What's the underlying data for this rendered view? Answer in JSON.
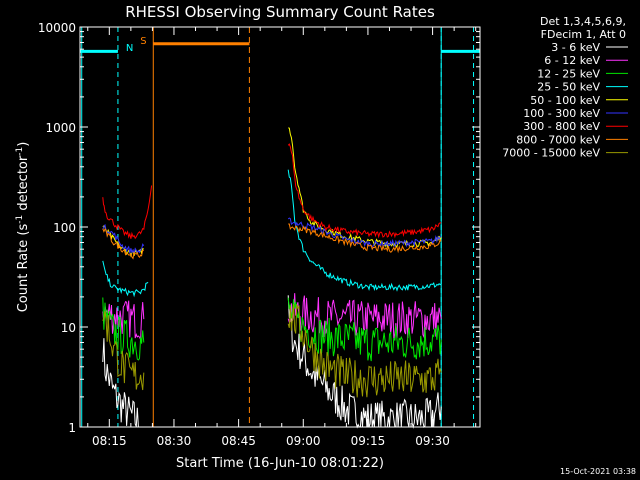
{
  "chart_data": {
    "type": "line",
    "title": "RHESSI Observing Summary Count Rates",
    "xlabel": "Start Time (16-Jun-10 08:01:22)",
    "ylabel_main": "Count Rate (s",
    "ylabel_sup1": "-1",
    "ylabel_mid": " detector",
    "ylabel_sup2": "-1",
    "ylabel_end": ")",
    "y_scale": "log",
    "ylim": [
      1,
      10000
    ],
    "xlim_minutes": [
      8.2,
      101.0
    ],
    "x_ticks": [
      {
        "label": "08:15",
        "minute": 15
      },
      {
        "label": "08:30",
        "minute": 30
      },
      {
        "label": "08:45",
        "minute": 45
      },
      {
        "label": "09:00",
        "minute": 60
      },
      {
        "label": "09:15",
        "minute": 75
      },
      {
        "label": "09:30",
        "minute": 90
      }
    ],
    "y_ticks": [
      {
        "label": "1",
        "value": 1
      },
      {
        "label": "10",
        "value": 10
      },
      {
        "label": "100",
        "value": 100
      },
      {
        "label": "1000",
        "value": 1000
      },
      {
        "label": "10000",
        "value": 10000
      }
    ],
    "legend_header": [
      "Det 1,3,4,5,6,9,",
      "FDecim 1, Att 0"
    ],
    "legend_placement": "right",
    "series": [
      {
        "name": "3 - 6 keV",
        "color": "#ffffff",
        "segments": [
          {
            "x": [
              13.5,
              14,
              15,
              16,
              18,
              20,
              21,
              22,
              23
            ],
            "y": [
              7,
              4,
              3,
              2.2,
              1.6,
              1.3,
              1.2,
              1.1,
              1
            ]
          },
          {
            "x": [
              56.5,
              57,
              58,
              60,
              62,
              65,
              70,
              75,
              80,
              85,
              88,
              90,
              92
            ],
            "y": [
              14,
              10,
              7,
              5,
              3.5,
              2.5,
              1.5,
              1.2,
              1.2,
              1.2,
              1.2,
              1.3,
              1.6
            ]
          }
        ]
      },
      {
        "name": "6 - 12 keV",
        "color": "#ff33ff",
        "segments": [
          {
            "x": [
              13.5,
              14,
              16,
              18,
              20,
              22,
              23
            ],
            "y": [
              15,
              14,
              13,
              12.5,
              12,
              11.5,
              12
            ]
          },
          {
            "x": [
              56.5,
              57,
              58,
              60,
              62,
              65,
              70,
              75,
              80,
              85,
              90,
              92
            ],
            "y": [
              16,
              15,
              14,
              13.5,
              13,
              12.5,
              12,
              12,
              12,
              12,
              12,
              12
            ]
          }
        ]
      },
      {
        "name": "12 - 25 keV",
        "color": "#00e600",
        "segments": [
          {
            "x": [
              13.5,
              14,
              16,
              18,
              20,
              22,
              23
            ],
            "y": [
              15,
              12,
              9,
              8,
              7.5,
              7,
              7
            ]
          },
          {
            "x": [
              56.5,
              57,
              58,
              60,
              62,
              65,
              70,
              75,
              80,
              85,
              90,
              92
            ],
            "y": [
              16,
              14,
              12,
              10,
              9,
              8,
              7.5,
              7,
              7,
              7,
              7.5,
              7.5
            ]
          }
        ]
      },
      {
        "name": "25 - 50 keV",
        "color": "#00ffff",
        "segments": [
          {
            "x": [
              13.5,
              14,
              15,
              16,
              18,
              20,
              22,
              23,
              24
            ],
            "y": [
              45,
              35,
              28,
              25,
              23,
              22,
              22,
              24,
              28
            ]
          },
          {
            "x": [
              56.5,
              57,
              57.5,
              58,
              59,
              60,
              62,
              65,
              70,
              75,
              80,
              85,
              90,
              92
            ],
            "y": [
              350,
              300,
              200,
              120,
              80,
              60,
              45,
              35,
              28,
              25,
              25,
              25,
              26,
              27
            ]
          }
        ]
      },
      {
        "name": "50 - 100 keV",
        "color": "#ffff00",
        "segments": [
          {
            "x": [
              13.5,
              14,
              16,
              18,
              20,
              22,
              23
            ],
            "y": [
              100,
              95,
              75,
              60,
              55,
              55,
              60
            ]
          },
          {
            "x": [
              56.5,
              57,
              57.5,
              58,
              59,
              60,
              62,
              65,
              70,
              75,
              80,
              85,
              90,
              92
            ],
            "y": [
              1000,
              900,
              700,
              400,
              250,
              150,
              110,
              95,
              80,
              72,
              68,
              68,
              70,
              80
            ]
          }
        ]
      },
      {
        "name": "100 - 300 keV",
        "color": "#3333ff",
        "segments": [
          {
            "x": [
              13.5,
              14,
              16,
              18,
              20,
              22,
              23
            ],
            "y": [
              100,
              98,
              85,
              65,
              58,
              57,
              65
            ]
          },
          {
            "x": [
              56.5,
              57,
              58,
              60,
              62,
              65,
              70,
              75,
              80,
              85,
              90,
              92
            ],
            "y": [
              115,
              115,
              110,
              105,
              100,
              90,
              75,
              68,
              68,
              70,
              72,
              80
            ]
          }
        ]
      },
      {
        "name": "300 - 800 keV",
        "color": "#ff0000",
        "segments": [
          {
            "x": [
              13.5,
              13.8,
              14.5,
              16,
              18,
              20,
              22,
              23,
              24,
              24.8
            ],
            "y": [
              200,
              160,
              130,
              110,
              90,
              80,
              85,
              95,
              150,
              260
            ]
          },
          {
            "x": [
              56.5,
              57,
              57.5,
              58,
              59,
              60,
              62,
              65,
              70,
              75,
              80,
              85,
              90,
              92
            ],
            "y": [
              700,
              650,
              500,
              300,
              200,
              150,
              120,
              100,
              90,
              85,
              85,
              88,
              95,
              110
            ]
          }
        ]
      },
      {
        "name": "800 - 7000 keV",
        "color": "#ff8000",
        "segments": [
          {
            "x": [
              13.5,
              14,
              16,
              18,
              20,
              22,
              23
            ],
            "y": [
              95,
              90,
              70,
              60,
              52,
              52,
              58
            ]
          },
          {
            "x": [
              56.5,
              57,
              58,
              60,
              62,
              65,
              70,
              75,
              80,
              85,
              90,
              92
            ],
            "y": [
              100,
              100,
              98,
              95,
              90,
              82,
              70,
              62,
              60,
              62,
              65,
              72
            ]
          }
        ]
      },
      {
        "name": "7000 - 15000 keV",
        "color": "#999900",
        "segments": [
          {
            "x": [
              13.5,
              14,
              15,
              16,
              18,
              20,
              22,
              23
            ],
            "y": [
              15,
              12,
              9,
              6,
              4,
              3.3,
              3.2,
              3.5
            ]
          },
          {
            "x": [
              56.5,
              57,
              58,
              60,
              62,
              65,
              70,
              75,
              80,
              85,
              90,
              92
            ],
            "y": [
              13,
              13,
              12,
              9,
              6,
              4,
              3.2,
              3,
              3,
              3,
              3,
              3.5
            ]
          }
        ]
      }
    ],
    "annotations": {
      "night_label": "N",
      "saa_label": "S",
      "night_color": "#00ffff",
      "saa_color": "#ff8000"
    }
  },
  "footer_timestamp": "15-Oct-2021 03:38"
}
